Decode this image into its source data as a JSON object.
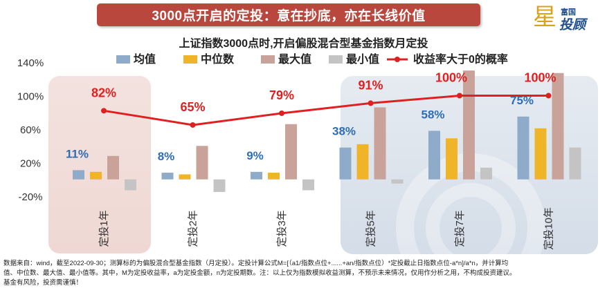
{
  "header": {
    "banner_title": "3000点开启的定投：意在抄底，亦在长线价值",
    "brand_small": "富国",
    "brand_large": "投顾",
    "brand_star": "星"
  },
  "chart_data": {
    "type": "bar",
    "title": "上证指数3000点时,开启偏股混合型基金指数月定投",
    "categories": [
      "定投1年",
      "定投2年",
      "定投3年",
      "定投5年",
      "定投7年",
      "定投10年"
    ],
    "y_tick_labels": [
      "140%",
      "100%",
      "60%",
      "20%",
      "-20%"
    ],
    "y_ticks": [
      140,
      100,
      60,
      20,
      -20
    ],
    "ylim": [
      -20,
      140
    ],
    "series": [
      {
        "name": "均值",
        "color": "#8eabc9",
        "values": [
          11,
          8,
          9,
          38,
          58,
          75
        ]
      },
      {
        "name": "中位数",
        "color": "#f0b429",
        "values": [
          9,
          6,
          8,
          42,
          49,
          61
        ]
      },
      {
        "name": "最大值",
        "color": "#c9a39a",
        "values": [
          28,
          40,
          66,
          86,
          130,
          127
        ]
      },
      {
        "name": "最小值",
        "color": "#c4c4c4",
        "values": [
          -13,
          -15,
          -13,
          -5,
          14,
          38
        ]
      }
    ],
    "mean_labels": [
      "11%",
      "8%",
      "9%",
      "38%",
      "58%",
      "75%"
    ],
    "line": {
      "name": "收益率大于0的概率",
      "color": "#e02020",
      "values": [
        82,
        65,
        79,
        91,
        100,
        100
      ],
      "labels": [
        "82%",
        "65%",
        "79%",
        "91%",
        "100%",
        "100%"
      ]
    }
  },
  "footnote": {
    "line1": "数据来自：wind，截至2022-09-30；测算标的为偏股混合型基金指数（月定投）。定投计算公式M=[（a1/指数点位+......+an/指数点位）*定投截止日指数点位-a*n]/a*n，并计算均",
    "line2": "值、中位数、最大值、最小值等。其中，M为定投收益率，a为定投金额，n为定投期数。注：以上仅为指数模拟收益测算，不预示未来情况，仅用作分析之用，不构成投资建议。",
    "line3": "基金有风险，投资需谨慎！"
  }
}
